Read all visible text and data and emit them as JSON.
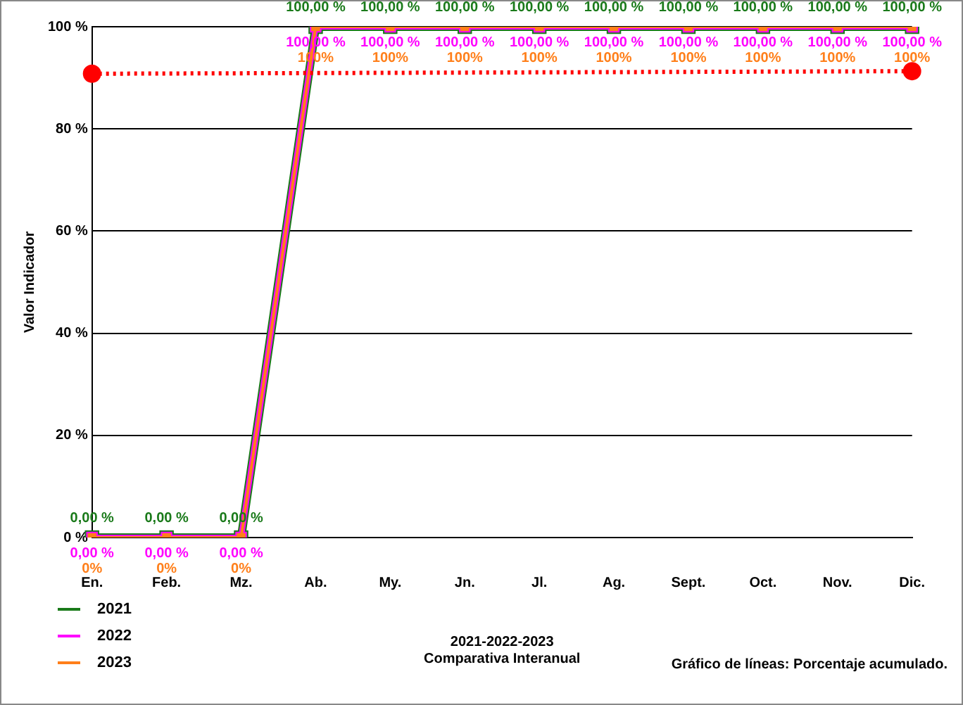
{
  "chart_data": {
    "type": "line",
    "ylabel": "Valor Indicador",
    "xlabel": "2021-2022-2023\nComparativa Interanual",
    "categories": [
      "En.",
      "Feb.",
      "Mz.",
      "Ab.",
      "My.",
      "Jn.",
      "Jl.",
      "Ag.",
      "Sept.",
      "Oct.",
      "Nov.",
      "Dic."
    ],
    "series": [
      {
        "name": "2021",
        "color": "#1a7a1a",
        "values": [
          0,
          0,
          0,
          100,
          100,
          100,
          100,
          100,
          100,
          100,
          100,
          100
        ],
        "value_labels": [
          "0,00 %",
          "0,00 %",
          "0,00 %",
          "100,00 %",
          "100,00 %",
          "100,00 %",
          "100,00 %",
          "100,00 %",
          "100,00 %",
          "100,00 %",
          "100,00 %",
          "100,00 %"
        ]
      },
      {
        "name": "2022",
        "color": "#ff00ff",
        "values": [
          0,
          0,
          0,
          100,
          100,
          100,
          100,
          100,
          100,
          100,
          100,
          100
        ],
        "value_labels": [
          "0,00 %",
          "0,00 %",
          "0,00 %",
          "100,00 %",
          "100,00 %",
          "100,00 %",
          "100,00 %",
          "100,00 %",
          "100,00 %",
          "100,00 %",
          "100,00 %",
          "100,00 %"
        ]
      },
      {
        "name": "2023",
        "color": "#ff7f1a",
        "values": [
          0,
          0,
          0,
          100,
          100,
          100,
          100,
          100,
          100,
          100,
          100,
          100
        ],
        "value_labels": [
          "0%",
          "0%",
          "0%",
          "100%",
          "100%",
          "100%",
          "100%",
          "100%",
          "100%",
          "100%",
          "100%",
          "100%"
        ]
      },
      {
        "type": "line",
        "color": "#ff0000",
        "line_style": "dotted",
        "marker": "circle",
        "values": [
          90.8,
          null,
          null,
          null,
          null,
          null,
          null,
          null,
          null,
          null,
          null,
          91.3
        ]
      }
    ],
    "ylim": [
      0,
      100
    ],
    "yticks": [
      {
        "value": 0,
        "label": "0 %"
      },
      {
        "value": 20,
        "label": "20 %"
      },
      {
        "value": 40,
        "label": "40 %"
      },
      {
        "value": 60,
        "label": "60 %"
      },
      {
        "value": 80,
        "label": "80 %"
      },
      {
        "value": 100,
        "label": "100 %"
      }
    ],
    "grid": "y",
    "legend": "bottom left",
    "marker": "square",
    "line_style": "solid",
    "annotations": [
      "Gráfico de líneas: Porcentaje acumulado."
    ]
  }
}
